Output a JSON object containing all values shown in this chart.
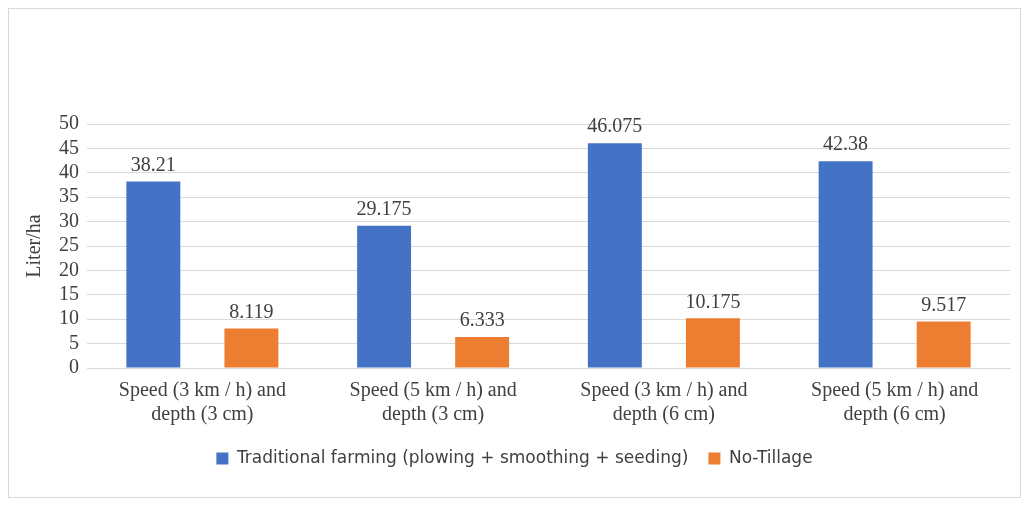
{
  "chart_data": {
    "type": "bar",
    "ylabel": "Liter/ha",
    "categories": [
      "Speed (3 km / h) and depth (3 cm)",
      "Speed (5 km / h) and depth (3 cm)",
      "Speed (3 km / h) and depth (6 cm)",
      "Speed (5 km / h) and depth (6 cm)"
    ],
    "series": [
      {
        "name": "Traditional farming (plowing + smoothing + seeding)",
        "color": "#4472c4",
        "values": [
          38.21,
          29.175,
          46.075,
          42.38
        ]
      },
      {
        "name": "No-Tillage",
        "color": "#ed7d31",
        "values": [
          8.119,
          6.333,
          10.175,
          9.517
        ]
      }
    ],
    "ylim": [
      0,
      50
    ],
    "yticks": [
      0,
      5,
      10,
      15,
      20,
      25,
      30,
      35,
      40,
      45,
      50
    ],
    "grid": "y",
    "legend": "bottom",
    "data_labels": true
  }
}
